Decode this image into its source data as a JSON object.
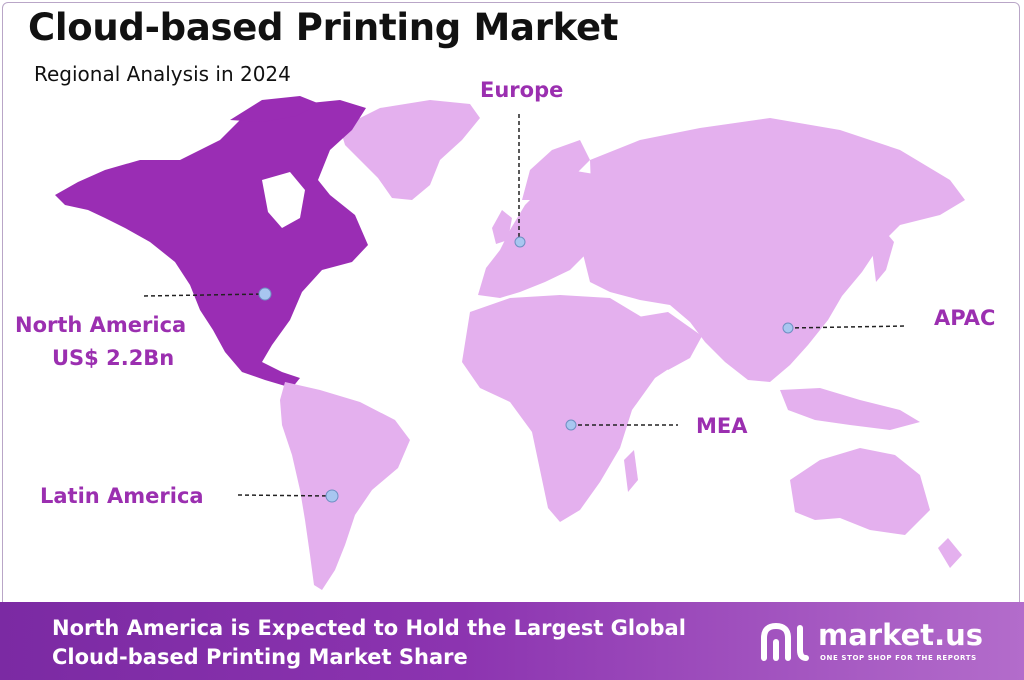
{
  "header": {
    "title": "Cloud-based Printing Market",
    "subtitle": "Regional Analysis in 2024"
  },
  "regions": [
    {
      "name": "North America",
      "value": "US$ 2.2Bn",
      "highlighted": true
    },
    {
      "name": "Europe",
      "highlighted": false
    },
    {
      "name": "APAC",
      "highlighted": false
    },
    {
      "name": "MEA",
      "highlighted": false
    },
    {
      "name": "Latin America",
      "highlighted": false
    }
  ],
  "colors": {
    "highlight_region": "#9a2db4",
    "other_regions": "#e4b0ee",
    "label_text": "#9b2fb0",
    "marker": "#a8c6f0",
    "banner_start": "#7b2aa3",
    "banner_end": "#b36ccb"
  },
  "banner": {
    "line1": "North America is Expected to Hold the Largest Global",
    "line2": "Cloud-based Printing Market Share"
  },
  "brand": {
    "name": "market.us",
    "tagline": "ONE STOP SHOP FOR THE REPORTS",
    "icon": "market-us-logo-icon"
  }
}
